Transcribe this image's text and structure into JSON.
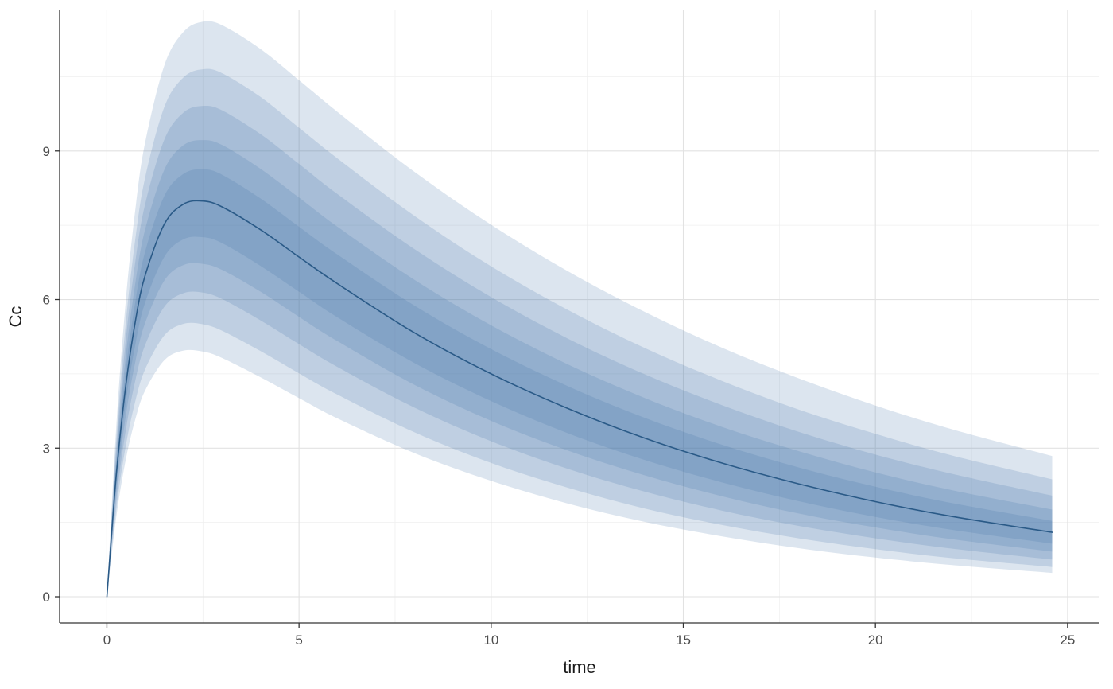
{
  "chart_data": {
    "type": "line",
    "title": "",
    "xlabel": "time",
    "ylabel": "Cc",
    "x": [
      0,
      0.25,
      0.5,
      0.75,
      1,
      1.5,
      2,
      2.5,
      3,
      4,
      5,
      6,
      8,
      10,
      12,
      14,
      16,
      18,
      20,
      22,
      24.6
    ],
    "series": [
      {
        "name": "median",
        "values": [
          0,
          2.51,
          4.31,
          5.6,
          6.5,
          7.53,
          7.93,
          7.99,
          7.87,
          7.41,
          6.86,
          6.32,
          5.33,
          4.5,
          3.8,
          3.2,
          2.7,
          2.28,
          1.92,
          1.62,
          1.3
        ]
      }
    ],
    "bands": [
      {
        "name": "band-outermost",
        "hi": [
          0,
          3.5,
          6.04,
          7.88,
          9.19,
          10.74,
          11.41,
          11.61,
          11.54,
          11.06,
          10.43,
          9.79,
          8.58,
          7.51,
          6.57,
          5.75,
          5.03,
          4.41,
          3.86,
          3.38,
          2.84
        ],
        "lo": [
          0,
          1.64,
          2.8,
          3.61,
          4.17,
          4.78,
          4.97,
          4.95,
          4.82,
          4.43,
          4.01,
          3.6,
          2.9,
          2.34,
          1.88,
          1.51,
          1.22,
          0.98,
          0.79,
          0.64,
          0.48
        ]
      },
      {
        "name": "band-wide",
        "hi": [
          0,
          3.24,
          5.59,
          7.28,
          8.48,
          9.9,
          10.49,
          10.65,
          10.57,
          10.09,
          9.47,
          8.85,
          7.69,
          6.67,
          5.79,
          5.02,
          4.36,
          3.78,
          3.29,
          2.85,
          2.37
        ],
        "lo": [
          0,
          1.8,
          3.08,
          3.98,
          4.6,
          5.28,
          5.51,
          5.5,
          5.37,
          4.96,
          4.51,
          4.08,
          3.32,
          2.7,
          2.2,
          1.78,
          1.45,
          1.18,
          0.96,
          0.78,
          0.6
        ]
      },
      {
        "name": "band-middle",
        "hi": [
          0,
          3.04,
          5.24,
          6.82,
          7.94,
          9.24,
          9.78,
          9.91,
          9.82,
          9.34,
          8.74,
          8.13,
          7.02,
          6.05,
          5.21,
          4.49,
          3.87,
          3.33,
          2.87,
          2.48,
          2.04
        ],
        "lo": [
          0,
          1.98,
          3.4,
          4.4,
          5.09,
          5.86,
          6.13,
          6.14,
          6.01,
          5.58,
          5.1,
          4.64,
          3.82,
          3.14,
          2.58,
          2.12,
          1.74,
          1.43,
          1.18,
          0.97,
          0.75
        ]
      },
      {
        "name": "band-narrow",
        "hi": [
          0,
          2.85,
          4.91,
          6.38,
          7.43,
          8.63,
          9.12,
          9.22,
          9.12,
          8.64,
          8.06,
          7.47,
          6.4,
          5.48,
          4.69,
          4.01,
          3.43,
          2.94,
          2.51,
          2.15,
          1.76
        ],
        "lo": [
          0,
          2.15,
          3.69,
          4.78,
          5.54,
          6.39,
          6.7,
          6.72,
          6.6,
          6.16,
          5.65,
          5.16,
          4.28,
          3.55,
          2.95,
          2.45,
          2.03,
          1.68,
          1.4,
          1.16,
          0.91
        ]
      },
      {
        "name": "band-innermost",
        "hi": [
          0,
          2.69,
          4.62,
          6.0,
          6.98,
          8.1,
          8.54,
          8.63,
          8.52,
          8.04,
          7.47,
          6.91,
          5.88,
          5.0,
          4.25,
          3.61,
          3.07,
          2.61,
          2.22,
          1.89,
          1.53
        ],
        "lo": [
          0,
          2.3,
          3.96,
          5.13,
          5.95,
          6.87,
          7.22,
          7.26,
          7.14,
          6.68,
          6.16,
          5.64,
          4.72,
          3.95,
          3.3,
          2.76,
          2.31,
          1.93,
          1.61,
          1.35,
          1.07
        ]
      }
    ],
    "xlim": [
      -1.23,
      25.83
    ],
    "ylim": [
      -0.53,
      11.84
    ],
    "x_ticks": [
      0,
      5,
      10,
      15,
      20,
      25
    ],
    "y_ticks": [
      0,
      3,
      6,
      9
    ],
    "x_minor_ticks": [
      2.5,
      7.5,
      12.5,
      17.5,
      22.5
    ],
    "y_minor_ticks": [
      1.5,
      4.5,
      7.5,
      10.5
    ],
    "grid": true,
    "legend": "none"
  },
  "colors": {
    "background": "#ffffff",
    "band_fill": "rgba(61,111,165,0.18)",
    "median_line": "#2a5a87",
    "grid_major": "#e2e2e2",
    "grid_minor": "#efefef",
    "axis_line": "#343434",
    "tick_mark": "#343434",
    "tick_label": "#4d4d4d",
    "axis_title": "#1a1a1a"
  }
}
